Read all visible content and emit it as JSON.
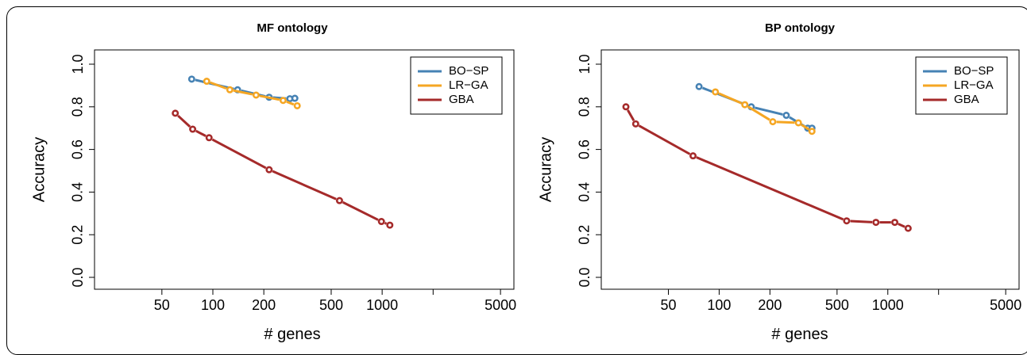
{
  "chart_data": [
    {
      "type": "line",
      "title": "MF ontology",
      "xlabel": "# genes",
      "ylabel": "Accuracy",
      "x_scale": "log",
      "xlim": [
        20,
        6000
      ],
      "ylim": [
        0,
        1
      ],
      "xticks": [
        50,
        100,
        200,
        500,
        1000,
        2000,
        5000
      ],
      "xtick_labels": [
        "50",
        "100",
        "200",
        "500",
        "1000",
        "",
        "5000"
      ],
      "yticks": [
        0,
        0.2,
        0.4,
        0.6,
        0.8,
        1.0
      ],
      "ytick_labels": [
        "0.0",
        "0.2",
        "0.4",
        "0.6",
        "0.8",
        "1.0"
      ],
      "grid": false,
      "legend_position": "top-right",
      "series": [
        {
          "name": "BO−SP",
          "color": "#4682B4",
          "x": [
            75,
            140,
            215,
            285,
            305
          ],
          "y": [
            0.93,
            0.88,
            0.845,
            0.838,
            0.84
          ]
        },
        {
          "name": "LR−GA",
          "color": "#F5A623",
          "x": [
            92,
            126,
            180,
            260,
            315
          ],
          "y": [
            0.92,
            0.88,
            0.855,
            0.83,
            0.805
          ]
        },
        {
          "name": "GBA",
          "color": "#A52A2A",
          "x": [
            60,
            76,
            95,
            215,
            560,
            990,
            1110
          ],
          "y": [
            0.77,
            0.695,
            0.655,
            0.505,
            0.36,
            0.262,
            0.245
          ]
        }
      ]
    },
    {
      "type": "line",
      "title": "BP ontology",
      "xlabel": "# genes",
      "ylabel": "Accuracy",
      "x_scale": "log",
      "xlim": [
        20,
        6000
      ],
      "ylim": [
        0,
        1
      ],
      "xticks": [
        50,
        100,
        200,
        500,
        1000,
        2000,
        5000
      ],
      "xtick_labels": [
        "50",
        "100",
        "200",
        "500",
        "1000",
        "",
        "5000"
      ],
      "yticks": [
        0,
        0.2,
        0.4,
        0.6,
        0.8,
        1.0
      ],
      "ytick_labels": [
        "0.0",
        "0.2",
        "0.4",
        "0.6",
        "0.8",
        "1.0"
      ],
      "grid": false,
      "legend_position": "top-right",
      "series": [
        {
          "name": "BO−SP",
          "color": "#4682B4",
          "x": [
            76,
            155,
            250,
            335,
            355
          ],
          "y": [
            0.895,
            0.8,
            0.76,
            0.7,
            0.7
          ]
        },
        {
          "name": "LR−GA",
          "color": "#F5A623",
          "x": [
            95,
            142,
            208,
            295,
            355
          ],
          "y": [
            0.87,
            0.81,
            0.73,
            0.725,
            0.685
          ]
        },
        {
          "name": "GBA",
          "color": "#A52A2A",
          "x": [
            28,
            32,
            70,
            570,
            850,
            1100,
            1320
          ],
          "y": [
            0.8,
            0.72,
            0.57,
            0.265,
            0.258,
            0.258,
            0.23
          ]
        }
      ]
    }
  ]
}
